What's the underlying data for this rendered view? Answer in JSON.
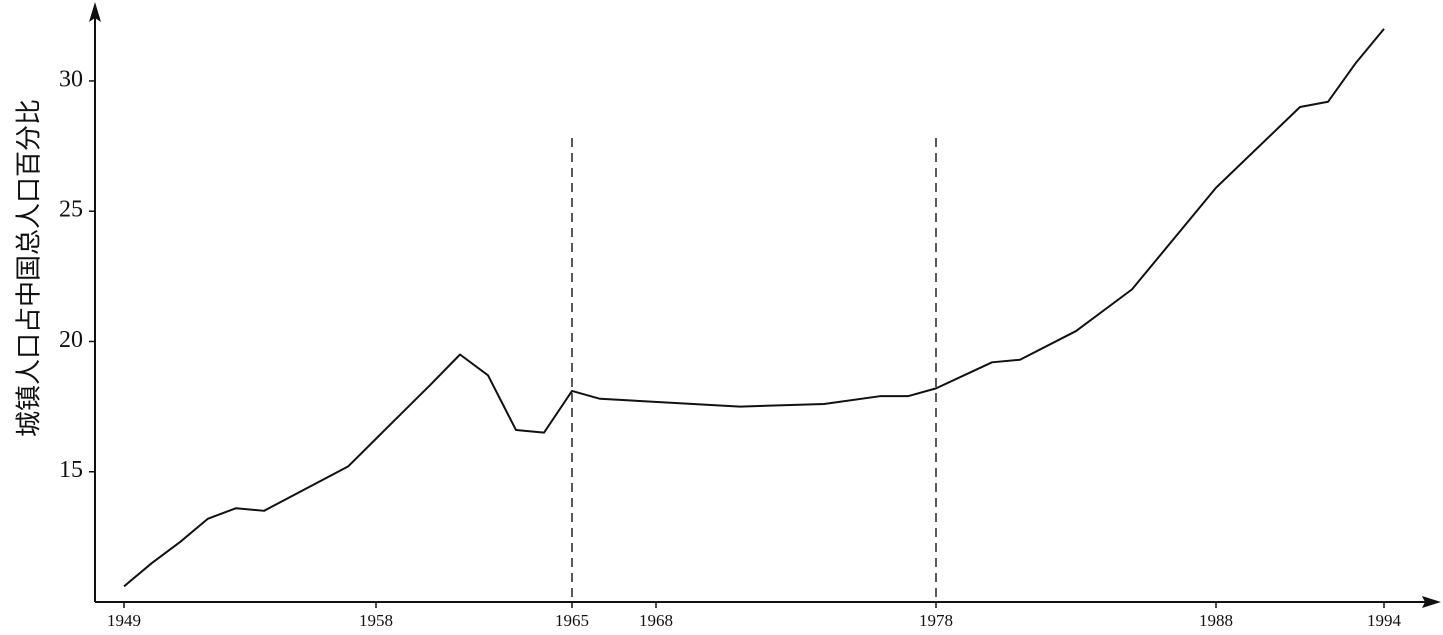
{
  "chart_data": {
    "type": "line",
    "y_label": "城镇人口占中国总人口百分比",
    "x": [
      1949,
      1950,
      1951,
      1952,
      1953,
      1954,
      1957,
      1960,
      1961,
      1962,
      1963,
      1964,
      1965,
      1966,
      1971,
      1974,
      1976,
      1977,
      1978,
      1980,
      1981,
      1983,
      1985,
      1988,
      1991,
      1992,
      1993,
      1994
    ],
    "values": [
      10.6,
      11.5,
      12.3,
      13.2,
      13.6,
      13.5,
      15.2,
      18.4,
      19.5,
      18.7,
      16.6,
      16.5,
      18.1,
      17.8,
      17.5,
      17.6,
      17.9,
      17.9,
      18.2,
      19.2,
      19.3,
      20.4,
      22.0,
      25.9,
      29.0,
      29.2,
      30.7,
      32.0
    ],
    "color": "#111111",
    "xlim": [
      1948,
      1996
    ],
    "xticks": [
      1949,
      1958,
      1965,
      1968,
      1978,
      1988,
      1994
    ],
    "ylim": [
      10,
      32.8
    ],
    "yticks": [
      15,
      20,
      25,
      30
    ],
    "vlines": [
      1965,
      1978
    ],
    "grid": false
  }
}
